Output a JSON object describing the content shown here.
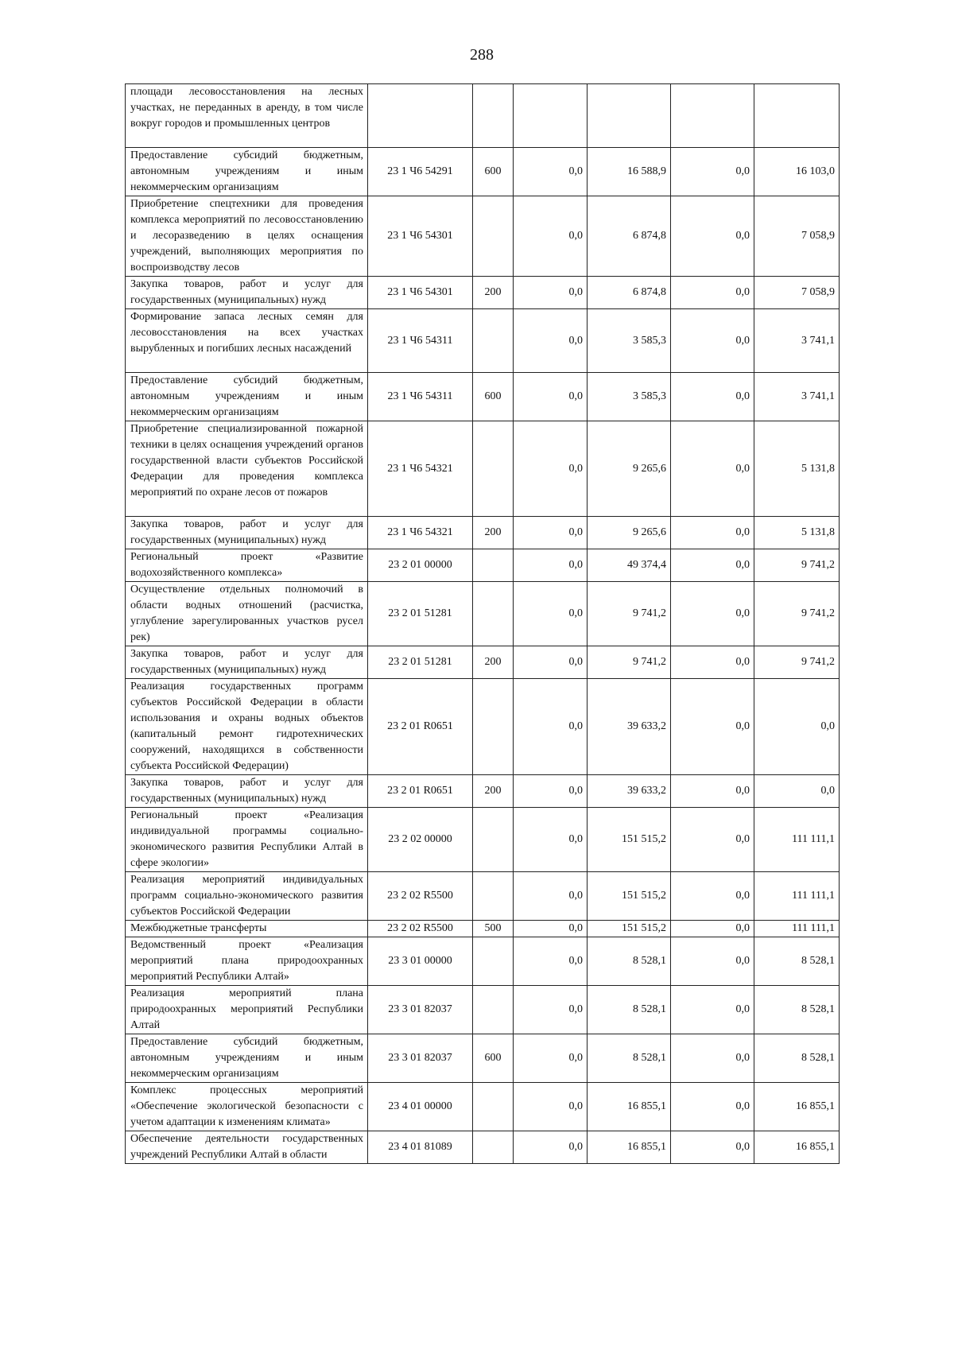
{
  "page_number": "288",
  "rows": [
    {
      "name": "площади лесовосстановления на лесных участках, не переданных в аренду, в том числе вокруг городов и промышленных центров",
      "code": "",
      "vr": "",
      "c1": "",
      "c2": "",
      "c3": "",
      "c4": "",
      "lines": 4
    },
    {
      "name": "Предоставление субсидий бюджетным, автономным учреждениям и иным некоммерческим организациям",
      "code": "23 1 Ч6 54291",
      "vr": "600",
      "c1": "0,0",
      "c2": "16 588,9",
      "c3": "0,0",
      "c4": "16 103,0",
      "lines": 3
    },
    {
      "name": "Приобретение спецтехники для проведения комплекса мероприятий по лесовосстановлению и лесоразведению в целях оснащения учреждений, выполняющих мероприятия по воспроизводству лесов",
      "code": "23 1 Ч6 54301",
      "vr": "",
      "c1": "0,0",
      "c2": "6 874,8",
      "c3": "0,0",
      "c4": "7 058,9",
      "lines": 5
    },
    {
      "name": "Закупка товаров, работ и услуг для государственных (муниципальных) нужд",
      "code": "23 1 Ч6 54301",
      "vr": "200",
      "c1": "0,0",
      "c2": "6 874,8",
      "c3": "0,0",
      "c4": "7 058,9",
      "lines": 2
    },
    {
      "name": "Формирование запаса лесных семян для лесовосстановления на всех участках вырубленных и погибших лесных насаждений",
      "code": "23 1 Ч6 54311",
      "vr": "",
      "c1": "0,0",
      "c2": "3 585,3",
      "c3": "0,0",
      "c4": "3 741,1",
      "lines": 4
    },
    {
      "name": "Предоставление субсидий бюджетным, автономным учреждениям и иным некоммерческим организациям",
      "code": "23 1 Ч6 54311",
      "vr": "600",
      "c1": "0,0",
      "c2": "3 585,3",
      "c3": "0,0",
      "c4": "3 741,1",
      "lines": 3
    },
    {
      "name": "Приобретение специализированной пожарной техники в целях оснащения учреждений органов государственной власти субъектов Российской Федерации для проведения комплекса мероприятий по охране лесов от пожаров",
      "code": "23 1 Ч6 54321",
      "vr": "",
      "c1": "0,0",
      "c2": "9 265,6",
      "c3": "0,0",
      "c4": "5 131,8",
      "lines": 6
    },
    {
      "name": "Закупка товаров, работ и услуг для государственных (муниципальных) нужд",
      "code": "23 1 Ч6 54321",
      "vr": "200",
      "c1": "0,0",
      "c2": "9 265,6",
      "c3": "0,0",
      "c4": "5 131,8",
      "lines": 2
    },
    {
      "name": "Региональный проект «Развитие водохозяйственного комплекса»",
      "code": "23 2 01 00000",
      "vr": "",
      "c1": "0,0",
      "c2": "49 374,4",
      "c3": "0,0",
      "c4": "9 741,2",
      "lines": 2
    },
    {
      "name": "Осуществление отдельных полномочий в области водных отношений (расчистка, углубление зарегулированных участков русел рек)",
      "code": "23 2 01 51281",
      "vr": "",
      "c1": "0,0",
      "c2": "9 741,2",
      "c3": "0,0",
      "c4": "9 741,2",
      "lines": 4
    },
    {
      "name": "Закупка товаров, работ и услуг для государственных (муниципальных) нужд",
      "code": "23 2 01 51281",
      "vr": "200",
      "c1": "0,0",
      "c2": "9 741,2",
      "c3": "0,0",
      "c4": "9 741,2",
      "lines": 2
    },
    {
      "name": "Реализация государственных программ субъектов Российской Федерации в области использования и охраны водных объектов (капитальный ремонт гидротехнических сооружений, находящихся в собственности субъекта Российской Федерации)",
      "code": "23 2 01 R0651",
      "vr": "",
      "c1": "0,0",
      "c2": "39 633,2",
      "c3": "0,0",
      "c4": "0,0",
      "lines": 6
    },
    {
      "name": "Закупка товаров, работ и услуг для государственных (муниципальных) нужд",
      "code": "23 2 01 R0651",
      "vr": "200",
      "c1": "0,0",
      "c2": "39 633,2",
      "c3": "0,0",
      "c4": "0,0",
      "lines": 2
    },
    {
      "name": "Региональный проект «Реализация индивидуальной программы социально-экономического развития Республики Алтай в сфере экологии»",
      "code": "23 2 02 00000",
      "vr": "",
      "c1": "0,0",
      "c2": "151 515,2",
      "c3": "0,0",
      "c4": "111 111,1",
      "lines": 4
    },
    {
      "name": "Реализация мероприятий индивидуальных программ социально-экономического развития субъектов Российской Федерации",
      "code": "23 2 02 R5500",
      "vr": "",
      "c1": "0,0",
      "c2": "151 515,2",
      "c3": "0,0",
      "c4": "111 111,1",
      "lines": 3
    },
    {
      "name": "Межбюджетные трансферты",
      "code": "23 2 02 R5500",
      "vr": "500",
      "c1": "0,0",
      "c2": "151 515,2",
      "c3": "0,0",
      "c4": "111 111,1",
      "lines": 1
    },
    {
      "name": "Ведомственный проект «Реализация мероприятий плана природоохранных мероприятий Республики Алтай»",
      "code": "23 3 01 00000",
      "vr": "",
      "c1": "0,0",
      "c2": "8 528,1",
      "c3": "0,0",
      "c4": "8 528,1",
      "lines": 3
    },
    {
      "name": "Реализация мероприятий плана природоохранных мероприятий Республики Алтай",
      "code": "23 3 01 82037",
      "vr": "",
      "c1": "0,0",
      "c2": "8 528,1",
      "c3": "0,0",
      "c4": "8 528,1",
      "lines": 3
    },
    {
      "name": "Предоставление субсидий бюджетным, автономным учреждениям и иным некоммерческим организациям",
      "code": "23 3 01 82037",
      "vr": "600",
      "c1": "0,0",
      "c2": "8 528,1",
      "c3": "0,0",
      "c4": "8 528,1",
      "lines": 3
    },
    {
      "name": "Комплекс процессных мероприятий «Обеспечение экологической безопасности с учетом адаптации к изменениям климата»",
      "code": "23 4 01 00000",
      "vr": "",
      "c1": "0,0",
      "c2": "16 855,1",
      "c3": "0,0",
      "c4": "16 855,1",
      "lines": 3
    },
    {
      "name": "Обеспечение деятельности государственных учреждений Республики Алтай в области",
      "code": "23 4 01 81089",
      "vr": "",
      "c1": "0,0",
      "c2": "16 855,1",
      "c3": "0,0",
      "c4": "16 855,1",
      "lines": 2
    }
  ]
}
